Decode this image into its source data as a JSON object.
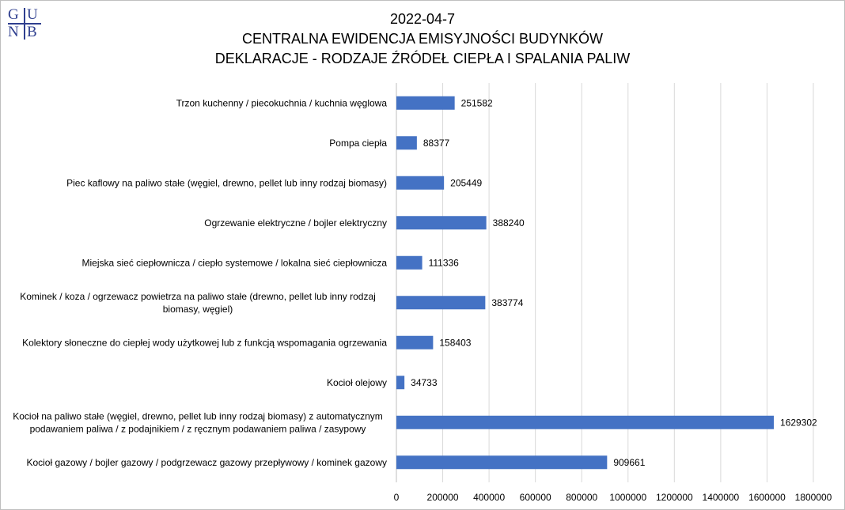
{
  "logo": {
    "letters": [
      "G",
      "U",
      "N",
      "B"
    ]
  },
  "title_lines": [
    "2022-04-7",
    "CENTRALNA EWIDENCJA EMISYJNOŚCI BUDYNKÓW",
    "DEKLARACJE - RODZAJE ŹRÓDEŁ CIEPŁA I SPALANIA PALIW"
  ],
  "chart_data": {
    "type": "bar",
    "orientation": "horizontal",
    "categories": [
      [
        "Trzon kuchenny / piecokuchnia / kuchnia węglowa"
      ],
      [
        "Pompa ciepła"
      ],
      [
        "Piec kaflowy na paliwo stałe (węgiel, drewno, pellet lub inny rodzaj biomasy)"
      ],
      [
        "Ogrzewanie elektryczne / bojler elektryczny"
      ],
      [
        "Miejska sieć ciepłownicza / ciepło systemowe / lokalna sieć ciepłownicza"
      ],
      [
        "Kominek / koza / ogrzewacz powietrza na paliwo stałe (drewno, pellet lub inny rodzaj",
        "biomasy, węgiel)"
      ],
      [
        "Kolektory słoneczne do ciepłej wody użytkowej lub z funkcją wspomagania ogrzewania"
      ],
      [
        "Kocioł olejowy"
      ],
      [
        "Kocioł na paliwo stałe (węgiel, drewno, pellet lub inny rodzaj biomasy) z automatycznym",
        "podawaniem paliwa / z podajnikiem / z ręcznym podawaniem paliwa / zasypowy"
      ],
      [
        "Kocioł gazowy / bojler gazowy / podgrzewacz gazowy przepływowy / kominek gazowy"
      ]
    ],
    "values": [
      251582,
      88377,
      205449,
      388240,
      111336,
      383774,
      158403,
      34733,
      1629302,
      909661
    ],
    "data_labels": [
      "251582",
      "88377",
      "205449",
      "388240",
      "111336",
      "383774",
      "158403",
      "34733",
      "1629302",
      "909661"
    ],
    "x_ticks": [
      0,
      200000,
      400000,
      600000,
      800000,
      1000000,
      1200000,
      1400000,
      1600000,
      1800000
    ],
    "x_tick_labels": [
      "0",
      "200000",
      "400000",
      "600000",
      "800000",
      "1000000",
      "1200000",
      "1400000",
      "1600000",
      "1800000"
    ],
    "xlim": [
      0,
      1800000
    ],
    "bar_color": "#4472c4",
    "grid": true,
    "grid_color": "#d9d9d9",
    "legend": "none"
  }
}
